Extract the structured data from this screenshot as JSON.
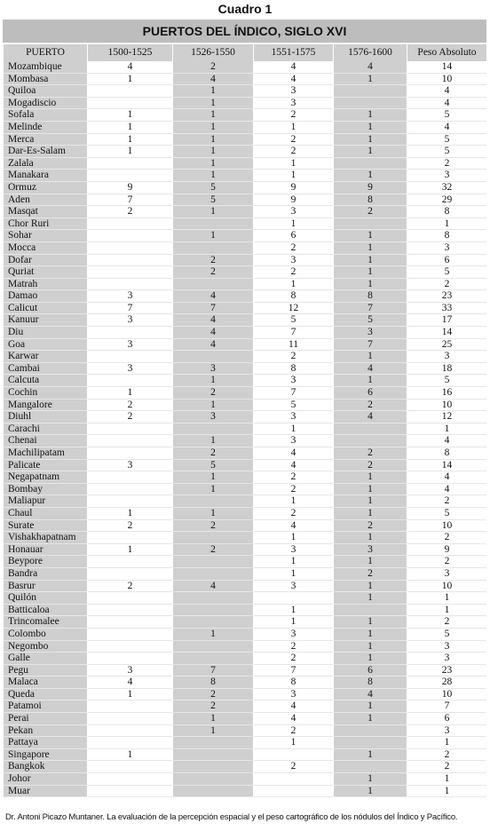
{
  "caption": "Cuadro 1",
  "table_title": "PUERTOS DEL ÍNDICO, SIGLO XVI",
  "columns": [
    "PUERTO",
    "1500-1525",
    "1526-1550",
    "1551-1575",
    "1576-1600",
    "Peso Absoluto"
  ],
  "shaded_columns": [
    0,
    2,
    4
  ],
  "rows": [
    [
      "Mozambique",
      "4",
      "2",
      "4",
      "4",
      "14"
    ],
    [
      "Mombasa",
      "1",
      "4",
      "4",
      "1",
      "10"
    ],
    [
      "Quiloa",
      "",
      "1",
      "3",
      "",
      "4"
    ],
    [
      "Mogadiscio",
      "",
      "1",
      "3",
      "",
      "4"
    ],
    [
      "Sofala",
      "1",
      "1",
      "2",
      "1",
      "5"
    ],
    [
      "Melinde",
      "1",
      "1",
      "1",
      "1",
      "4"
    ],
    [
      "Merca",
      "1",
      "1",
      "2",
      "1",
      "5"
    ],
    [
      "Dar-Es-Salam",
      "1",
      "1",
      "2",
      "1",
      "5"
    ],
    [
      "Zalala",
      "",
      "1",
      "1",
      "",
      "2"
    ],
    [
      "Manakara",
      "",
      "1",
      "1",
      "1",
      "3"
    ],
    [
      "Ormuz",
      "9",
      "5",
      "9",
      "9",
      "32"
    ],
    [
      "Aden",
      "7",
      "5",
      "9",
      "8",
      "29"
    ],
    [
      "Masqat",
      "2",
      "1",
      "3",
      "2",
      "8"
    ],
    [
      "Chor Ruri",
      "",
      "",
      "1",
      "",
      "1"
    ],
    [
      "Sohar",
      "",
      "1",
      "6",
      "1",
      "8"
    ],
    [
      "Mocca",
      "",
      "",
      "2",
      "1",
      "3"
    ],
    [
      "Dofar",
      "",
      "2",
      "3",
      "1",
      "6"
    ],
    [
      "Quriat",
      "",
      "2",
      "2",
      "1",
      "5"
    ],
    [
      "Matrah",
      "",
      "",
      "1",
      "1",
      "2"
    ],
    [
      "Damao",
      "3",
      "4",
      "8",
      "8",
      "23"
    ],
    [
      "Calicut",
      "7",
      "7",
      "12",
      "7",
      "33"
    ],
    [
      "Kanuur",
      "3",
      "4",
      "5",
      "5",
      "17"
    ],
    [
      "Diu",
      "",
      "4",
      "7",
      "3",
      "14"
    ],
    [
      "Goa",
      "3",
      "4",
      "11",
      "7",
      "25"
    ],
    [
      "Karwar",
      "",
      "",
      "2",
      "1",
      "3"
    ],
    [
      "Cambai",
      "3",
      "3",
      "8",
      "4",
      "18"
    ],
    [
      "Calcuta",
      "",
      "1",
      "3",
      "1",
      "5"
    ],
    [
      "Cochin",
      "1",
      "2",
      "7",
      "6",
      "16"
    ],
    [
      "Mangalore",
      "2",
      "1",
      "5",
      "2",
      "10"
    ],
    [
      "Diuhl",
      "2",
      "3",
      "3",
      "4",
      "12"
    ],
    [
      "Carachi",
      "",
      "",
      "1",
      "",
      "1"
    ],
    [
      "Chenai",
      "",
      "1",
      "3",
      "",
      "4"
    ],
    [
      "Machilipatam",
      "",
      "2",
      "4",
      "2",
      "8"
    ],
    [
      "Palicate",
      "3",
      "5",
      "4",
      "2",
      "14"
    ],
    [
      "Negapatnam",
      "",
      "1",
      "2",
      "1",
      "4"
    ],
    [
      "Bombay",
      "",
      "1",
      "2",
      "1",
      "4"
    ],
    [
      "Maliapur",
      "",
      "",
      "1",
      "1",
      "2"
    ],
    [
      "Chaul",
      "1",
      "1",
      "2",
      "1",
      "5"
    ],
    [
      "Surate",
      "2",
      "2",
      "4",
      "2",
      "10"
    ],
    [
      "Vishakhapatnam",
      "",
      "",
      "1",
      "1",
      "2"
    ],
    [
      "Honauar",
      "1",
      "2",
      "3",
      "3",
      "9"
    ],
    [
      "Beypore",
      "",
      "",
      "1",
      "1",
      "2"
    ],
    [
      "Bandra",
      "",
      "",
      "1",
      "2",
      "3"
    ],
    [
      "Basrur",
      "2",
      "4",
      "3",
      "1",
      "10"
    ],
    [
      "Quilón",
      "",
      "",
      "",
      "1",
      "1"
    ],
    [
      "Batticaloa",
      "",
      "",
      "1",
      "",
      "1"
    ],
    [
      "Trincomalee",
      "",
      "",
      "1",
      "1",
      "2"
    ],
    [
      "Colombo",
      "",
      "1",
      "3",
      "1",
      "5"
    ],
    [
      "Negombo",
      "",
      "",
      "2",
      "1",
      "3"
    ],
    [
      "Galle",
      "",
      "",
      "2",
      "1",
      "3"
    ],
    [
      "Pegu",
      "3",
      "7",
      "7",
      "6",
      "23"
    ],
    [
      "Malaca",
      "4",
      "8",
      "8",
      "8",
      "28"
    ],
    [
      "Queda",
      "1",
      "2",
      "3",
      "4",
      "10"
    ],
    [
      "Patamoi",
      "",
      "2",
      "4",
      "1",
      "7"
    ],
    [
      "Perai",
      "",
      "1",
      "4",
      "1",
      "6"
    ],
    [
      "Pekan",
      "",
      "1",
      "2",
      "",
      "3"
    ],
    [
      "Pattaya",
      "",
      "",
      "1",
      "",
      "1"
    ],
    [
      "Singapore",
      "1",
      "",
      "",
      "1",
      "2"
    ],
    [
      "Bangkok",
      "",
      "",
      "2",
      "",
      "2"
    ],
    [
      "Johor",
      "",
      "",
      "",
      "1",
      "1"
    ],
    [
      "Muar",
      "",
      "",
      "",
      "1",
      "1"
    ]
  ],
  "footer": "Dr. Antoni Picazo Muntaner.  La evaluación de la percepción espacial y el peso cartográfico de los nódulos del Índico y Pacífico."
}
